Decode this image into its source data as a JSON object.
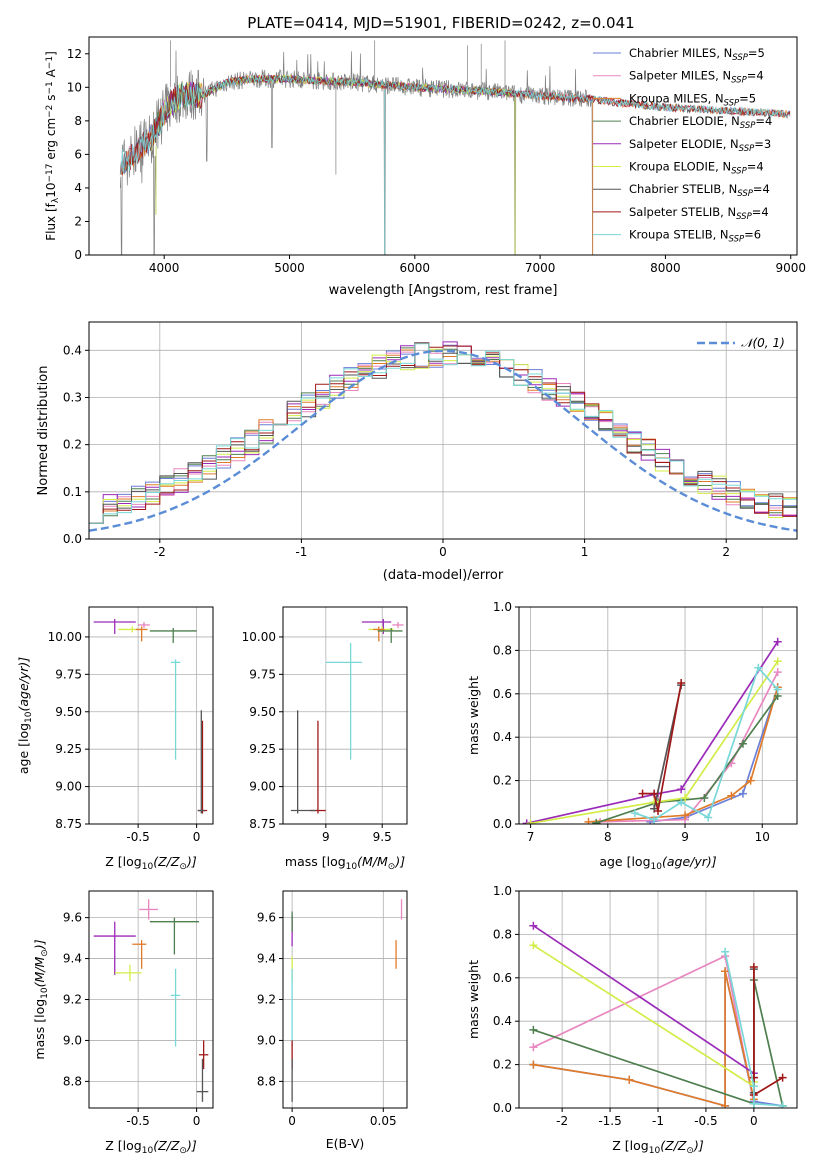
{
  "figure_title": "PLATE=0414, MJD=51901, FIBERID=0242, z=0.041",
  "colors": {
    "Chabrier MILES": "#6a7fd8",
    "Salpeter MILES": "#e887c0",
    "Kroupa MILES": "#e07b2a",
    "Chabrier ELODIE": "#4f7f4f",
    "Salpeter ELODIE": "#9b2ab8",
    "Kroupa ELODIE": "#d4ec48",
    "Chabrier STELIB": "#555555",
    "Salpeter STELIB": "#a01818",
    "Kroupa STELIB": "#78d8d8",
    "gaussian": "#5b8cd6",
    "data": "#808080"
  },
  "chart_data": [
    {
      "id": "spectrum",
      "type": "line",
      "title": "PLATE=0414, MJD=51901, FIBERID=0242, z=0.041",
      "xlabel": "wavelength [Angstrom, rest frame]",
      "ylabel_parts": [
        "Flux [f",
        "λ",
        "10",
        "−17",
        " erg cm",
        "−2",
        " s",
        "−1",
        " A",
        "−1",
        "]"
      ],
      "xlim": [
        3400,
        9050
      ],
      "ylim": [
        0,
        13
      ],
      "xticks": [
        4000,
        5000,
        6000,
        7000,
        8000,
        9000
      ],
      "yticks": [
        0,
        2,
        4,
        6,
        8,
        10,
        12
      ],
      "grid": false,
      "legend_position": "top-right",
      "legend": [
        {
          "series": "Chabrier MILES",
          "pre": "Chabrier MILES, N",
          "sub": "SSP",
          "post": "=5"
        },
        {
          "series": "Salpeter MILES",
          "pre": "Salpeter MILES, N",
          "sub": "SSP",
          "post": "=4"
        },
        {
          "series": "Kroupa MILES",
          "pre": "Kroupa MILES, N",
          "sub": "SSP",
          "post": "=5"
        },
        {
          "series": "Chabrier ELODIE",
          "pre": "Chabrier ELODIE, N",
          "sub": "SSP",
          "post": "=4"
        },
        {
          "series": "Salpeter ELODIE",
          "pre": "Salpeter ELODIE, N",
          "sub": "SSP",
          "post": "=3"
        },
        {
          "series": "Kroupa ELODIE",
          "pre": "Kroupa ELODIE, N",
          "sub": "SSP",
          "post": "=4"
        },
        {
          "series": "Chabrier STELIB",
          "pre": "Chabrier STELIB, N",
          "sub": "SSP",
          "post": "=4"
        },
        {
          "series": "Salpeter STELIB",
          "pre": "Salpeter STELIB, N",
          "sub": "SSP",
          "post": "=4"
        },
        {
          "series": "Kroupa STELIB",
          "pre": "Kroupa STELIB, N",
          "sub": "SSP",
          "post": "=6"
        }
      ],
      "continuum": {
        "x": [
          3650,
          3700,
          3800,
          3900,
          4000,
          4100,
          4200,
          4300,
          4400,
          4500,
          4700,
          5000,
          5200,
          5500,
          6000,
          6500,
          7000,
          7400
        ],
        "y": [
          5.6,
          5.5,
          6.4,
          7.0,
          8.5,
          9.4,
          9.6,
          9.5,
          9.9,
          10.3,
          10.5,
          10.5,
          10.4,
          10.3,
          10.0,
          9.8,
          9.5,
          9.3
        ]
      },
      "models_continuum": {
        "x": [
          7400,
          7600,
          8000,
          8500,
          9000
        ],
        "y": [
          9.3,
          9.1,
          8.8,
          8.6,
          8.4
        ]
      },
      "dips": [
        {
          "x": 3660,
          "y": 0
        },
        {
          "x": 3920,
          "y": 0
        },
        {
          "x": 3935,
          "y": 2.4
        },
        {
          "x": 4340,
          "y": 5.6
        },
        {
          "x": 4860,
          "y": 6.4
        },
        {
          "x": 5760,
          "y": 0
        },
        {
          "x": 6800,
          "y": 0
        },
        {
          "x": 7420,
          "y": 0
        }
      ]
    },
    {
      "id": "residuals",
      "type": "histogram",
      "xlabel": "(data-model)/error",
      "ylabel": "Normed distribution",
      "xlim": [
        -2.5,
        2.5
      ],
      "ylim": [
        0,
        0.46
      ],
      "xticks": [
        -2,
        -1,
        0,
        1,
        2
      ],
      "yticks": [
        0.0,
        0.1,
        0.2,
        0.3,
        0.4
      ],
      "grid": true,
      "bin_width": 0.1,
      "legend_label": "𝒩(0, 1)",
      "legend_position": "top-right",
      "series": [
        "Chabrier MILES",
        "Salpeter MILES",
        "Kroupa MILES",
        "Chabrier ELODIE",
        "Salpeter ELODIE",
        "Kroupa ELODIE",
        "Chabrier STELIB",
        "Salpeter STELIB",
        "Kroupa STELIB"
      ]
    },
    {
      "id": "age-vs-Z",
      "type": "errorbar",
      "xlabel_parts": [
        "Z [log",
        "10",
        "(Z/Z",
        "⊙",
        ")]"
      ],
      "ylabel_parts": [
        "age  [log",
        "10",
        "(age/yr)]"
      ],
      "xlim": [
        -0.92,
        0.14
      ],
      "ylim": [
        8.75,
        10.2
      ],
      "xticks": [
        -0.5,
        0.0
      ],
      "yticks": [
        8.75,
        9.0,
        9.25,
        9.5,
        9.75,
        10.0
      ],
      "grid": true,
      "points": [
        {
          "series": "Salpeter ELODIE",
          "x": -0.7,
          "y": 10.1,
          "xerr": [
            0.18,
            0.18
          ],
          "yerr": [
            0.08,
            0.02
          ]
        },
        {
          "series": "Kroupa ELODIE",
          "x": -0.55,
          "y": 10.05,
          "xerr": [
            0.12,
            0.08
          ],
          "yerr": [
            0.02,
            0.02
          ]
        },
        {
          "series": "Salpeter MILES",
          "x": -0.45,
          "y": 10.08,
          "xerr": [
            0.05,
            0.05
          ],
          "yerr": [
            0.02,
            0.02
          ]
        },
        {
          "series": "Kroupa MILES",
          "x": -0.47,
          "y": 10.05,
          "xerr": [
            0.05,
            0.05
          ],
          "yerr": [
            0.08,
            0.02
          ]
        },
        {
          "series": "Chabrier ELODIE",
          "x": -0.2,
          "y": 10.04,
          "xerr": [
            0.2,
            0.2
          ],
          "yerr": [
            0.08,
            0.02
          ]
        },
        {
          "series": "Kroupa STELIB",
          "x": -0.18,
          "y": 9.83,
          "xerr": [
            0.04,
            0.04
          ],
          "yerr": [
            0.65,
            0.02
          ]
        },
        {
          "series": "Salpeter STELIB",
          "x": 0.05,
          "y": 8.84,
          "xerr": [
            0.04,
            0.04
          ],
          "yerr": [
            0.02,
            0.6
          ]
        },
        {
          "series": "Chabrier STELIB",
          "x": 0.04,
          "y": 8.84,
          "xerr": [
            0.03,
            0.03
          ],
          "yerr": [
            0.02,
            0.67
          ]
        }
      ]
    },
    {
      "id": "age-vs-mass",
      "type": "errorbar",
      "xlabel_parts": [
        "mass [log",
        "10",
        "(M/M",
        "⊙",
        ")]"
      ],
      "xlim": [
        8.62,
        9.72
      ],
      "ylim": [
        8.75,
        10.2
      ],
      "xticks": [
        9.0,
        9.5
      ],
      "yticks": [
        8.75,
        9.0,
        9.25,
        9.5,
        9.75,
        10.0
      ],
      "grid": true,
      "points": [
        {
          "series": "Salpeter ELODIE",
          "x": 9.51,
          "y": 10.1,
          "xerr": [
            0.19,
            0.07
          ],
          "yerr": [
            0.08,
            0.02
          ]
        },
        {
          "series": "Kroupa ELODIE",
          "x": 9.5,
          "y": 10.05,
          "xerr": [
            0.12,
            0.1
          ],
          "yerr": [
            0.02,
            0.02
          ]
        },
        {
          "series": "Salpeter MILES",
          "x": 9.64,
          "y": 10.08,
          "xerr": [
            0.05,
            0.05
          ],
          "yerr": [
            0.02,
            0.02
          ]
        },
        {
          "series": "Kroupa MILES",
          "x": 9.47,
          "y": 10.05,
          "xerr": [
            0.05,
            0.05
          ],
          "yerr": [
            0.08,
            0.02
          ]
        },
        {
          "series": "Chabrier ELODIE",
          "x": 9.58,
          "y": 10.04,
          "xerr": [
            0.12,
            0.1
          ],
          "yerr": [
            0.08,
            0.02
          ]
        },
        {
          "series": "Kroupa STELIB",
          "x": 9.22,
          "y": 9.83,
          "xerr": [
            0.22,
            0.1
          ],
          "yerr": [
            0.65,
            0.13
          ]
        },
        {
          "series": "Salpeter STELIB",
          "x": 8.93,
          "y": 8.84,
          "xerr": [
            0.07,
            0.07
          ],
          "yerr": [
            0.02,
            0.6
          ]
        },
        {
          "series": "Chabrier STELIB",
          "x": 8.75,
          "y": 8.84,
          "xerr": [
            0.06,
            0.16
          ],
          "yerr": [
            0.02,
            0.67
          ]
        }
      ]
    },
    {
      "id": "mass-weight-vs-age",
      "type": "line",
      "xlabel_parts": [
        "age  [log",
        "10",
        "(age/yr)]"
      ],
      "ylabel": "mass weight",
      "xlim": [
        6.85,
        10.45
      ],
      "ylim": [
        0,
        1.0
      ],
      "xticks": [
        7,
        8,
        9,
        10
      ],
      "yticks": [
        0.0,
        0.2,
        0.4,
        0.6,
        0.8,
        1.0
      ],
      "grid": true,
      "series": [
        {
          "name": "Chabrier MILES",
          "x": [
            8.55,
            9.0,
            9.75,
            10.2
          ],
          "y": [
            0.01,
            0.03,
            0.14,
            0.63
          ]
        },
        {
          "name": "Salpeter MILES",
          "x": [
            7.9,
            9.0,
            9.6,
            10.2
          ],
          "y": [
            0.01,
            0.02,
            0.28,
            0.7
          ]
        },
        {
          "name": "Kroupa MILES",
          "x": [
            7.75,
            9.0,
            9.6,
            9.85,
            10.2
          ],
          "y": [
            0.01,
            0.04,
            0.13,
            0.2,
            0.63
          ]
        },
        {
          "name": "Chabrier ELODIE",
          "x": [
            7.85,
            8.65,
            9.25,
            9.75,
            10.2
          ],
          "y": [
            0.005,
            0.1,
            0.12,
            0.37,
            0.59
          ]
        },
        {
          "name": "Salpeter ELODIE",
          "x": [
            6.95,
            8.65,
            8.95,
            10.2
          ],
          "y": [
            0.003,
            0.14,
            0.16,
            0.84
          ]
        },
        {
          "name": "Kroupa ELODIE",
          "x": [
            7.0,
            8.6,
            9.0,
            10.2
          ],
          "y": [
            0.003,
            0.1,
            0.12,
            0.75
          ]
        },
        {
          "name": "Chabrier STELIB",
          "x": [
            8.6,
            8.95
          ],
          "y": [
            0.07,
            0.64
          ]
        },
        {
          "name": "Salpeter STELIB",
          "x": [
            8.45,
            8.6,
            8.65,
            8.95
          ],
          "y": [
            0.14,
            0.14,
            0.06,
            0.65
          ]
        },
        {
          "name": "Kroupa STELIB",
          "x": [
            8.35,
            8.6,
            8.95,
            9.3,
            9.95,
            10.2
          ],
          "y": [
            0.05,
            0.02,
            0.1,
            0.03,
            0.72,
            0.62
          ]
        }
      ]
    },
    {
      "id": "mass-vs-Z",
      "type": "errorbar",
      "xlabel_parts": [
        "Z [log",
        "10",
        "(Z/Z",
        "⊙",
        ")]"
      ],
      "ylabel_parts": [
        "mass [log",
        "10",
        "(M/M",
        "⊙",
        ")]"
      ],
      "xlim": [
        -0.92,
        0.14
      ],
      "ylim": [
        8.67,
        9.73
      ],
      "xticks": [
        -0.5,
        0.0
      ],
      "yticks": [
        8.8,
        9.0,
        9.2,
        9.4,
        9.6
      ],
      "grid": true,
      "points": [
        {
          "series": "Salpeter ELODIE",
          "x": -0.7,
          "y": 9.51,
          "xerr": [
            0.18,
            0.18
          ],
          "yerr": [
            0.19,
            0.07
          ]
        },
        {
          "series": "Kroupa ELODIE",
          "x": -0.57,
          "y": 9.33,
          "xerr": [
            0.13,
            0.1
          ],
          "yerr": [
            0.04,
            0.04
          ]
        },
        {
          "series": "Salpeter MILES",
          "x": -0.41,
          "y": 9.64,
          "xerr": [
            0.08,
            0.08
          ],
          "yerr": [
            0.05,
            0.05
          ]
        },
        {
          "series": "Kroupa MILES",
          "x": -0.47,
          "y": 9.47,
          "xerr": [
            0.08,
            0.04
          ],
          "yerr": [
            0.12,
            0.02
          ]
        },
        {
          "series": "Chabrier ELODIE",
          "x": -0.19,
          "y": 9.58,
          "xerr": [
            0.21,
            0.21
          ],
          "yerr": [
            0.16,
            0.02
          ]
        },
        {
          "series": "Kroupa STELIB",
          "x": -0.18,
          "y": 9.22,
          "xerr": [
            0.04,
            0.04
          ],
          "yerr": [
            0.25,
            0.13
          ]
        },
        {
          "series": "Salpeter STELIB",
          "x": 0.06,
          "y": 8.93,
          "xerr": [
            0.04,
            0.04
          ],
          "yerr": [
            0.07,
            0.07
          ]
        },
        {
          "series": "Chabrier STELIB",
          "x": 0.05,
          "y": 8.75,
          "xerr": [
            0.05,
            0.05
          ],
          "yerr": [
            0.05,
            0.16
          ]
        }
      ]
    },
    {
      "id": "mass-vs-EBV",
      "type": "errorbar",
      "xlabel": "E(B-V)",
      "xlim": [
        -0.005,
        0.063
      ],
      "ylim": [
        8.67,
        9.73
      ],
      "xticks": [
        0.0,
        0.05
      ],
      "yticks": [
        8.8,
        9.0,
        9.2,
        9.4,
        9.6
      ],
      "grid": true,
      "points": [
        {
          "series": "Salpeter ELODIE",
          "x": 0.0,
          "y": 9.51,
          "xerr": [
            0,
            0
          ],
          "yerr": [
            0.05,
            0.1
          ]
        },
        {
          "series": "Kroupa ELODIE",
          "x": 0.0,
          "y": 9.33,
          "xerr": [
            0,
            0
          ],
          "yerr": [
            0.04,
            0.08
          ]
        },
        {
          "series": "Chabrier ELODIE",
          "x": 0.0,
          "y": 9.58,
          "xerr": [
            0,
            0
          ],
          "yerr": [
            0.05,
            0.05
          ]
        },
        {
          "series": "Kroupa STELIB",
          "x": 0.0,
          "y": 9.22,
          "xerr": [
            0,
            0
          ],
          "yerr": [
            0.25,
            0.13
          ]
        },
        {
          "series": "Salpeter STELIB",
          "x": 0.0,
          "y": 8.93,
          "xerr": [
            0,
            0
          ],
          "yerr": [
            0.07,
            0.07
          ]
        },
        {
          "series": "Chabrier STELIB",
          "x": 0.0,
          "y": 8.75,
          "xerr": [
            0,
            0
          ],
          "yerr": [
            0.05,
            0.16
          ]
        },
        {
          "series": "Salpeter MILES",
          "x": 0.06,
          "y": 9.64,
          "xerr": [
            0,
            0
          ],
          "yerr": [
            0.05,
            0.05
          ]
        },
        {
          "series": "Kroupa MILES",
          "x": 0.057,
          "y": 9.47,
          "xerr": [
            0,
            0
          ],
          "yerr": [
            0.12,
            0.02
          ]
        }
      ]
    },
    {
      "id": "mass-weight-vs-Z",
      "type": "line",
      "xlabel_parts": [
        "Z [log",
        "10",
        "(Z/Z",
        "⊙",
        ")]"
      ],
      "ylabel": "mass weight",
      "xlim": [
        -2.45,
        0.45
      ],
      "ylim": [
        0,
        1.0
      ],
      "xticks": [
        -2.0,
        -1.5,
        -1.0,
        -0.5,
        0.0
      ],
      "yticks": [
        0.0,
        0.2,
        0.4,
        0.6,
        0.8,
        1.0
      ],
      "grid": true,
      "series": [
        {
          "name": "Chabrier MILES",
          "x": [
            -2.3,
            -1.3,
            -0.3,
            -0.3,
            0.0,
            0.3
          ],
          "y": [
            0.2,
            0.13,
            0.01,
            0.63,
            0.03,
            0.01
          ]
        },
        {
          "name": "Salpeter MILES",
          "x": [
            -2.3,
            -0.3,
            0.0
          ],
          "y": [
            0.28,
            0.7,
            0.02
          ]
        },
        {
          "name": "Kroupa MILES",
          "x": [
            -2.3,
            -1.3,
            -0.3,
            -0.3,
            0.0
          ],
          "y": [
            0.2,
            0.13,
            0.01,
            0.63,
            0.04
          ]
        },
        {
          "name": "Chabrier ELODIE",
          "x": [
            -2.3,
            0.0,
            0.0,
            0.3
          ],
          "y": [
            0.36,
            0.02,
            0.59,
            0.01
          ]
        },
        {
          "name": "Salpeter ELODIE",
          "x": [
            -2.3,
            0.0,
            0.0
          ],
          "y": [
            0.84,
            0.16,
            0.14
          ]
        },
        {
          "name": "Kroupa ELODIE",
          "x": [
            -2.3,
            0.0,
            0.0
          ],
          "y": [
            0.75,
            0.1,
            0.12
          ]
        },
        {
          "name": "Chabrier STELIB",
          "x": [
            0.0,
            0.0
          ],
          "y": [
            0.07,
            0.64
          ]
        },
        {
          "name": "Salpeter STELIB",
          "x": [
            0.0,
            0.0,
            0.0,
            0.3
          ],
          "y": [
            0.65,
            0.14,
            0.06,
            0.14
          ]
        },
        {
          "name": "Kroupa STELIB",
          "x": [
            -0.3,
            0.0,
            0.0,
            0.3
          ],
          "y": [
            0.72,
            0.1,
            0.02,
            0.01
          ]
        }
      ]
    }
  ]
}
